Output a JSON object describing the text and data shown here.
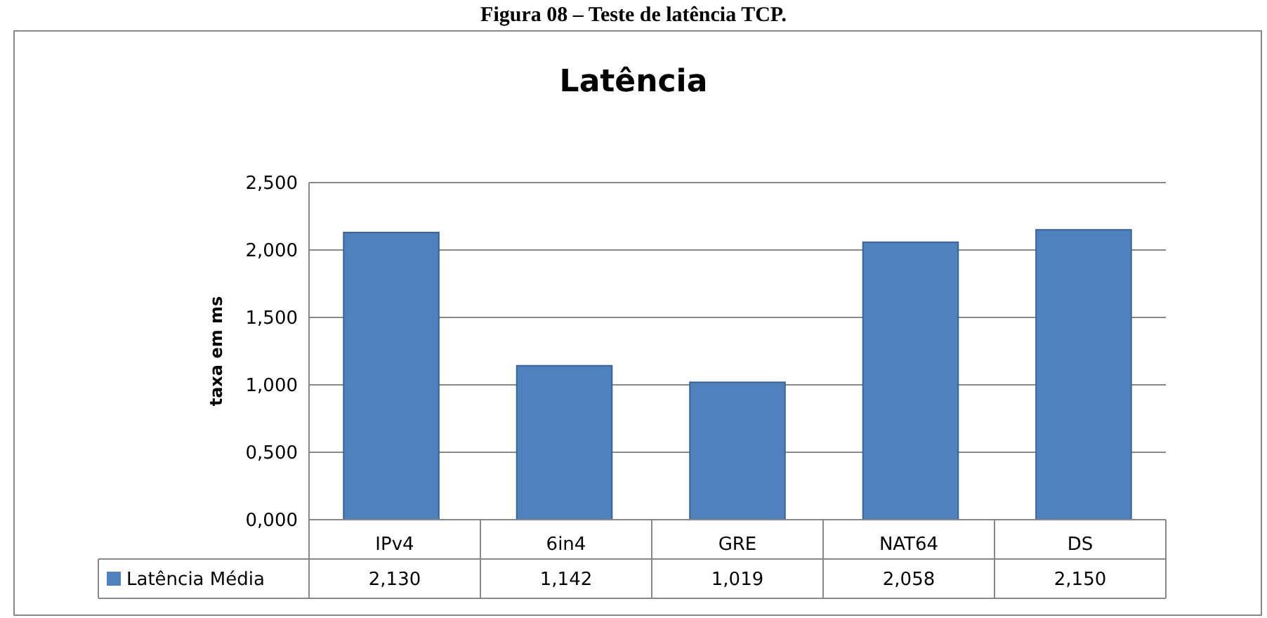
{
  "chart_data": {
    "type": "bar",
    "title": "Latência",
    "ylabel": "taxa em ms",
    "annotations": [
      "Figura 08 – Teste de latência TCP."
    ],
    "categories": [
      "IPv4",
      "6in4",
      "GRE",
      "NAT64",
      "DS"
    ],
    "series": [
      {
        "name": "Latência Média",
        "color": "#4f81bd",
        "values": [
          2.13,
          1.142,
          1.019,
          2.058,
          2.15
        ],
        "value_labels": [
          "2,130",
          "1,142",
          "1,019",
          "2,058",
          "2,150"
        ]
      }
    ],
    "ylim": [
      0,
      2.5
    ],
    "yticks": [
      {
        "value": 0,
        "label": "0,000"
      },
      {
        "value": 0.5,
        "label": "0,500"
      },
      {
        "value": 1,
        "label": "1,000"
      },
      {
        "value": 1.5,
        "label": "1,500"
      },
      {
        "value": 2,
        "label": "2,000"
      },
      {
        "value": 2.5,
        "label": "2,500"
      }
    ],
    "grid": "y",
    "legend": "bottom"
  }
}
